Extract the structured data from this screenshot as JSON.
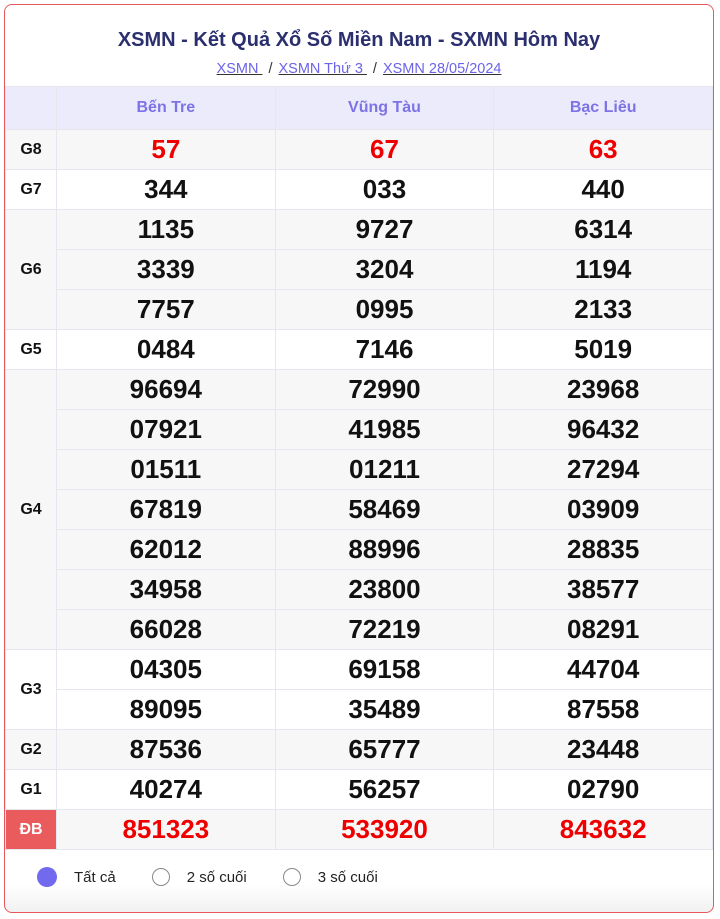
{
  "header": {
    "title": "XSMN - Kết Quả Xổ Số Miền Nam - SXMN Hôm Nay",
    "breadcrumbs": [
      "XSMN ",
      "XSMN Thứ 3 ",
      "XSMN 28/05/2024"
    ],
    "separator": "/"
  },
  "provinces": [
    "Bến Tre",
    "Vũng Tàu",
    "Bạc Liêu"
  ],
  "prizes": [
    {
      "label": "G8",
      "red": true,
      "rows": [
        [
          "57",
          "67",
          "63"
        ]
      ]
    },
    {
      "label": "G7",
      "rows": [
        [
          "344",
          "033",
          "440"
        ]
      ]
    },
    {
      "label": "G6",
      "rows": [
        [
          "1135",
          "9727",
          "6314"
        ],
        [
          "3339",
          "3204",
          "1194"
        ],
        [
          "7757",
          "0995",
          "2133"
        ]
      ]
    },
    {
      "label": "G5",
      "rows": [
        [
          "0484",
          "7146",
          "5019"
        ]
      ]
    },
    {
      "label": "G4",
      "rows": [
        [
          "96694",
          "72990",
          "23968"
        ],
        [
          "07921",
          "41985",
          "96432"
        ],
        [
          "01511",
          "01211",
          "27294"
        ],
        [
          "67819",
          "58469",
          "03909"
        ],
        [
          "62012",
          "88996",
          "28835"
        ],
        [
          "34958",
          "23800",
          "38577"
        ],
        [
          "66028",
          "72219",
          "08291"
        ]
      ]
    },
    {
      "label": "G3",
      "rows": [
        [
          "04305",
          "69158",
          "44704"
        ],
        [
          "89095",
          "35489",
          "87558"
        ]
      ]
    },
    {
      "label": "G2",
      "rows": [
        [
          "87536",
          "65777",
          "23448"
        ]
      ]
    },
    {
      "label": "G1",
      "rows": [
        [
          "40274",
          "56257",
          "02790"
        ]
      ]
    },
    {
      "label": "ĐB",
      "red": true,
      "special": true,
      "rows": [
        [
          "851323",
          "533920",
          "843632"
        ]
      ]
    }
  ],
  "filter": {
    "options": [
      "Tất cả",
      "2 số cuối",
      "3 số cuối"
    ],
    "selected": 0
  },
  "colors": {
    "border": "#e8575c",
    "header_text": "#2b2f6e",
    "accent": "#716aef",
    "prize_red": "#ee0000",
    "special_label_bg": "#ea5b5e"
  }
}
